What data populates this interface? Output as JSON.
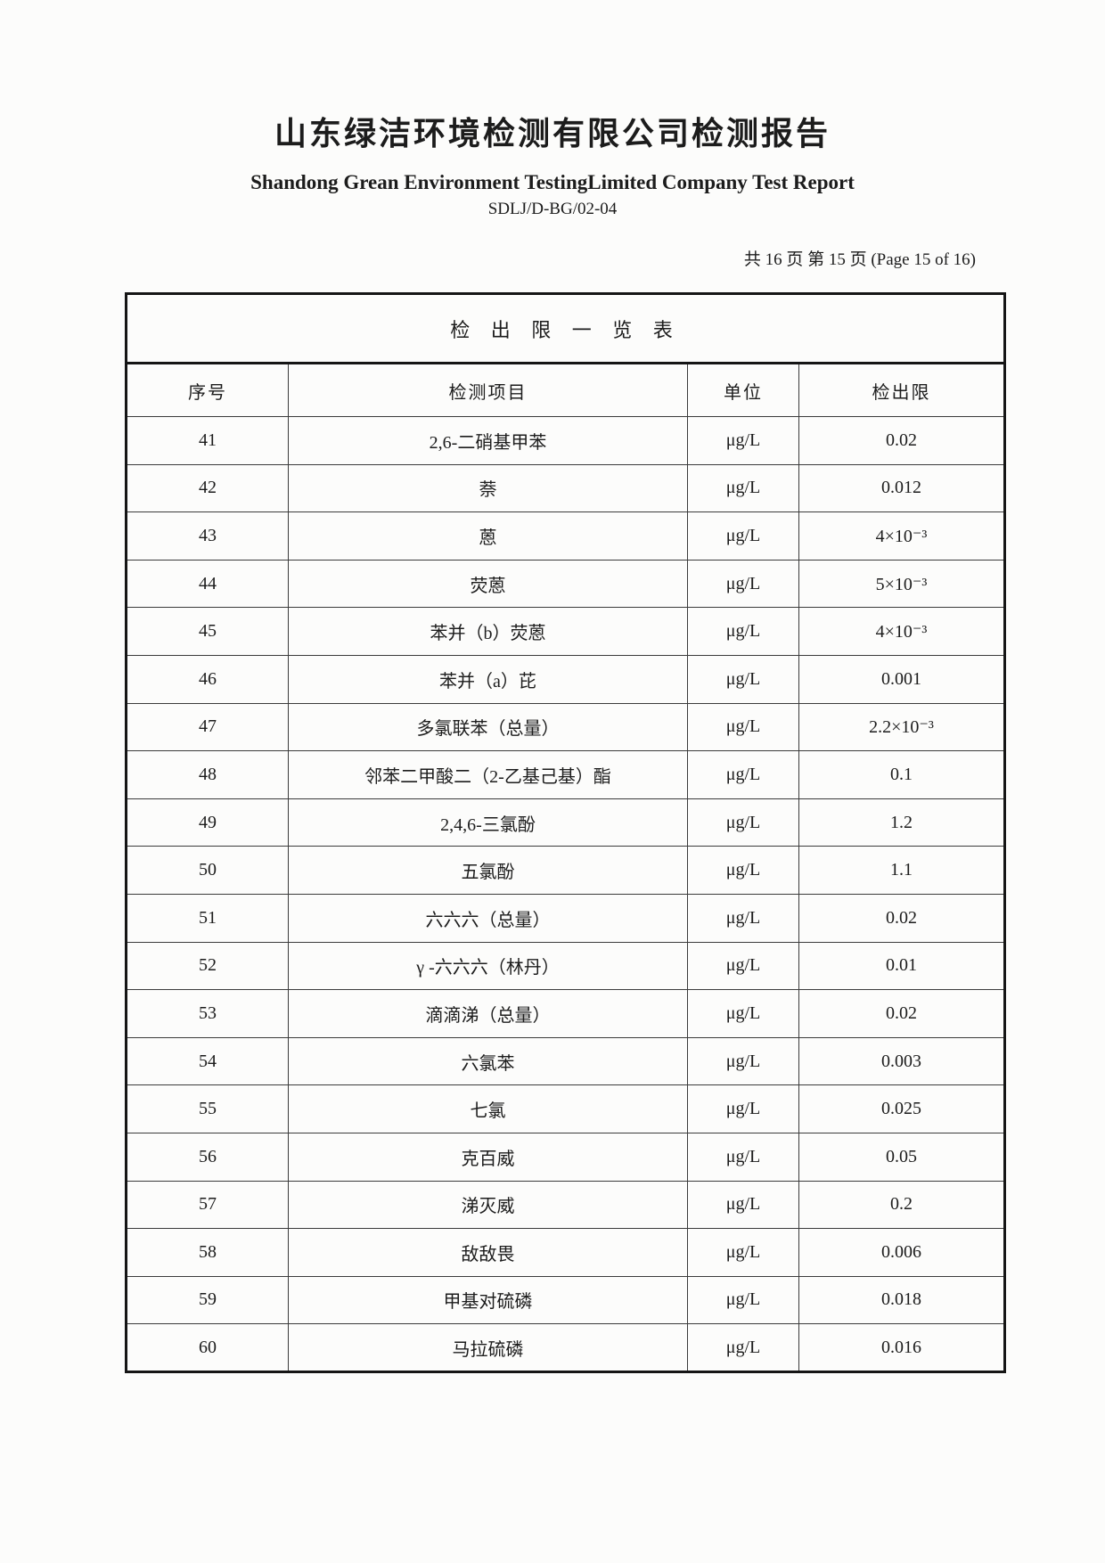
{
  "page": {
    "title_cn": "山东绿洁环境检测有限公司检测报告",
    "title_en": "Shandong Grean Environment TestingLimited Company Test Report",
    "doc_code": "SDLJ/D-BG/02-04",
    "page_info": "共 16 页 第 15 页  (Page 15 of 16)"
  },
  "table": {
    "title": "检 出 限 一 览 表",
    "headers": [
      "序号",
      "检测项目",
      "单位",
      "检出限"
    ],
    "rows": [
      {
        "no": "41",
        "item": "2,6-二硝基甲苯",
        "unit": "μg/L",
        "limit": "0.02"
      },
      {
        "no": "42",
        "item": "萘",
        "unit": "μg/L",
        "limit": "0.012"
      },
      {
        "no": "43",
        "item": "蒽",
        "unit": "μg/L",
        "limit": "4×10⁻³"
      },
      {
        "no": "44",
        "item": "荧蒽",
        "unit": "μg/L",
        "limit": "5×10⁻³"
      },
      {
        "no": "45",
        "item": "苯并（b）荧蒽",
        "unit": "μg/L",
        "limit": "4×10⁻³"
      },
      {
        "no": "46",
        "item": "苯并（a）芘",
        "unit": "μg/L",
        "limit": "0.001"
      },
      {
        "no": "47",
        "item": "多氯联苯（总量）",
        "unit": "μg/L",
        "limit": "2.2×10⁻³"
      },
      {
        "no": "48",
        "item": "邻苯二甲酸二（2-乙基己基）酯",
        "unit": "μg/L",
        "limit": "0.1"
      },
      {
        "no": "49",
        "item": "2,4,6-三氯酚",
        "unit": "μg/L",
        "limit": "1.2"
      },
      {
        "no": "50",
        "item": "五氯酚",
        "unit": "μg/L",
        "limit": "1.1"
      },
      {
        "no": "51",
        "item": "六六六（总量）",
        "unit": "μg/L",
        "limit": "0.02"
      },
      {
        "no": "52",
        "item": "γ -六六六（林丹）",
        "unit": "μg/L",
        "limit": "0.01"
      },
      {
        "no": "53",
        "item": "滴滴涕（总量）",
        "unit": "μg/L",
        "limit": "0.02"
      },
      {
        "no": "54",
        "item": "六氯苯",
        "unit": "μg/L",
        "limit": "0.003"
      },
      {
        "no": "55",
        "item": "七氯",
        "unit": "μg/L",
        "limit": "0.025"
      },
      {
        "no": "56",
        "item": "克百威",
        "unit": "μg/L",
        "limit": "0.05"
      },
      {
        "no": "57",
        "item": "涕灭威",
        "unit": "μg/L",
        "limit": "0.2"
      },
      {
        "no": "58",
        "item": "敌敌畏",
        "unit": "μg/L",
        "limit": "0.006"
      },
      {
        "no": "59",
        "item": "甲基对硫磷",
        "unit": "μg/L",
        "limit": "0.018"
      },
      {
        "no": "60",
        "item": "马拉硫磷",
        "unit": "μg/L",
        "limit": "0.016"
      }
    ]
  }
}
